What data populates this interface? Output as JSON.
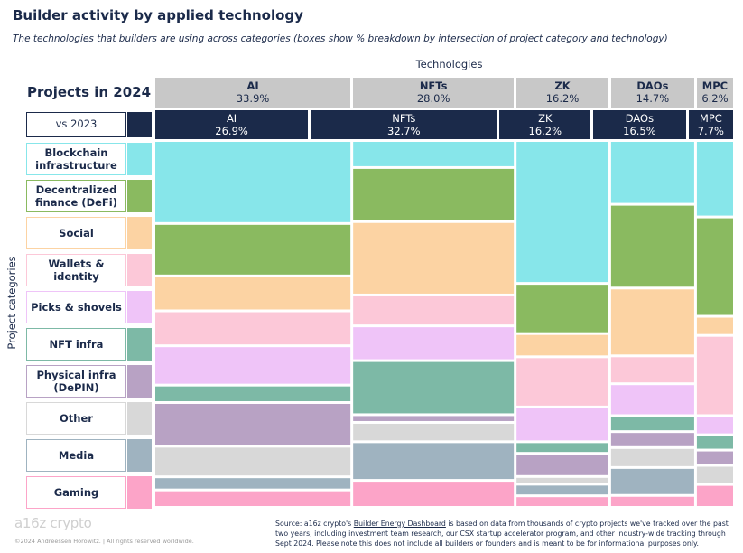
{
  "title": "Builder activity by applied technology",
  "subtitle": "The technologies that builders are using across categories (boxes show % breakdown by intersection of project category and technology)",
  "technologies_label": "Technologies",
  "projects_heading": "Projects in 2024",
  "vs_label": "vs 2023",
  "y_axis_label": "Project categories",
  "footer": {
    "logo": "a16z crypto",
    "copyright": "©2024 Andreessen Horowitz.  |  All rights reserved worldwide.",
    "source_prefix": "Source: a16z crypto's ",
    "source_link": "Builder Energy Dashboard",
    "source_suffix": " is based on data from thousands of crypto projects we've tracked over the past two years, including investment team research, our CSX startup accelerator program, and other industry-wide tracking through Sept 2024. Please note this does not include all builders or founders and is meant to be for informational purposes only."
  },
  "chart_data": {
    "type": "mosaic",
    "title": "Builder activity by applied technology",
    "x_title": "Technologies",
    "y_title": "Project categories",
    "technologies_2024": [
      {
        "name": "AI",
        "share": "33.9%"
      },
      {
        "name": "NFTs",
        "share": "28.0%"
      },
      {
        "name": "ZK",
        "share": "16.2%"
      },
      {
        "name": "DAOs",
        "share": "14.7%"
      },
      {
        "name": "MPC",
        "share": "6.2%"
      }
    ],
    "technologies_2023": [
      {
        "name": "AI",
        "share": "26.9%"
      },
      {
        "name": "NFTs",
        "share": "32.7%"
      },
      {
        "name": "ZK",
        "share": "16.2%"
      },
      {
        "name": "DAOs",
        "share": "16.5%"
      },
      {
        "name": "MPC",
        "share": "7.7%"
      }
    ],
    "categories": [
      {
        "name": "Blockchain infrastructure",
        "color": "#87e6ea"
      },
      {
        "name": "Decentralized finance (DeFi)",
        "color": "#8aba60"
      },
      {
        "name": "Social",
        "color": "#fcd3a3"
      },
      {
        "name": "Wallets & identity",
        "color": "#fcc8d8"
      },
      {
        "name": "Picks & shovels",
        "color": "#efc4f8"
      },
      {
        "name": "NFT infra",
        "color": "#7db9a6"
      },
      {
        "name": "Physical infra (DePIN)",
        "color": "#b8a2c4"
      },
      {
        "name": "Other",
        "color": "#d8d8d8"
      },
      {
        "name": "Media",
        "color": "#9fb3c0"
      },
      {
        "name": "Gaming",
        "color": "#fca4c8"
      }
    ],
    "segments_percent": {
      "AI": [
        19,
        12,
        8,
        8,
        9,
        4,
        10,
        7,
        3,
        4
      ],
      "NFTs": [
        7,
        14,
        19,
        8,
        9,
        14,
        2,
        5,
        10,
        7
      ],
      "ZK": [
        37,
        13,
        6,
        13,
        9,
        3,
        6,
        2,
        3,
        3
      ],
      "DAOs": [
        16,
        21,
        17,
        7,
        8,
        4,
        4,
        5,
        7,
        3
      ],
      "MPC": [
        20,
        26,
        5,
        21,
        5,
        4,
        4,
        5,
        0,
        6
      ]
    }
  }
}
